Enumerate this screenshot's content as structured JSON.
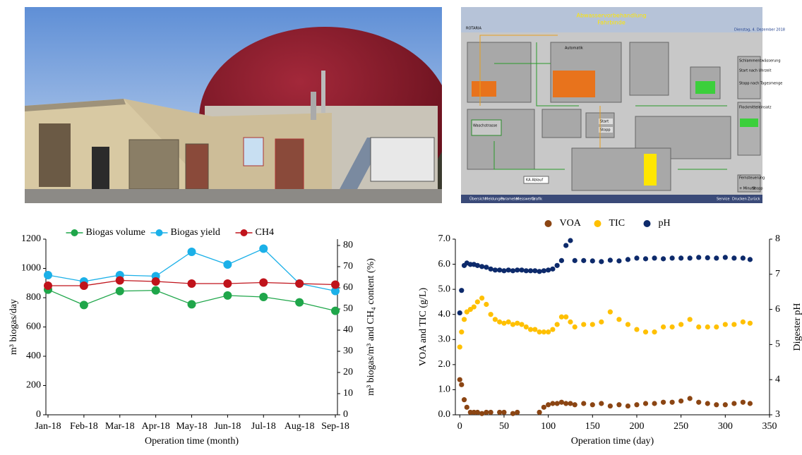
{
  "scada": {
    "title": "Abwasservorbehandlung",
    "subtitle": "Fahrbinde",
    "logo": "ROTARIA",
    "date": "Dienstag, 4. Dezember 2018",
    "labels": [
      "Automatik",
      "Waschstrasse",
      "KA Ablauf",
      "Start",
      "Stopp"
    ],
    "panel": [
      "Schlammentwässerung",
      "Start nach Uhrzeit",
      "Stopp nach Tagesmenge",
      "Flockmitteleinsatz",
      "Fernsteuerung",
      "+ Minute",
      "Stopp"
    ],
    "menu": [
      "Übersicht",
      "Meldungen",
      "Parameter",
      "Messwerte",
      "Grafik",
      "Service",
      "Drucken",
      "Zurück"
    ]
  },
  "chart_data": [
    {
      "type": "line",
      "legend": "top",
      "xlabel": "Operation time (month)",
      "ylabel": "m³ biogas/day",
      "y2label": "m³ biogas/m³ and CH₄ content (%)",
      "categories": [
        "Jan-18",
        "Feb-18",
        "Mar-18",
        "Apr-18",
        "May-18",
        "Jun-18",
        "Jul-18",
        "Aug-18",
        "Sep-18"
      ],
      "ylim": [
        0,
        1200
      ],
      "yticks": [
        0,
        200,
        400,
        600,
        800,
        1000,
        1200
      ],
      "y2lim": [
        0,
        83
      ],
      "y2ticks": [
        0,
        10,
        20,
        30,
        40,
        50,
        60,
        70,
        80
      ],
      "series": [
        {
          "name": "Biogas volume",
          "color": "#1fa64a",
          "values": [
            855,
            750,
            845,
            850,
            755,
            815,
            805,
            768,
            710
          ]
        },
        {
          "name": "Biogas yield",
          "color": "#1bb0e8",
          "axis": "y2",
          "values": [
            66,
            63,
            66,
            65.5,
            77,
            71,
            78.5,
            62,
            58.5
          ]
        },
        {
          "name": "CH4",
          "color": "#c0131b",
          "axis": "y2",
          "values": [
            61,
            61,
            63.5,
            63,
            62,
            62,
            62.5,
            62,
            61.5
          ]
        }
      ]
    },
    {
      "type": "scatter",
      "legend": "top",
      "xlabel": "Operation time (day)",
      "ylabel": "VOA and TIC (g/L)",
      "y2label": "Digester pH",
      "x": [
        0,
        2,
        5,
        8,
        12,
        16,
        20,
        25,
        30,
        35,
        40,
        45,
        50,
        55,
        60,
        65,
        70,
        75,
        80,
        85,
        90,
        95,
        100,
        105,
        110,
        115,
        120,
        125,
        130,
        140,
        150,
        160,
        170,
        180,
        190,
        200,
        210,
        220,
        230,
        240,
        250,
        260,
        270,
        280,
        290,
        300,
        310,
        320,
        328
      ],
      "xlim": [
        -5,
        350
      ],
      "xticks": [
        0,
        50,
        100,
        150,
        200,
        250,
        300,
        350
      ],
      "ylim": [
        0,
        7
      ],
      "yticks": [
        {
          "value": 0,
          "label": "0.0"
        },
        {
          "value": 1,
          "label": "1.0"
        },
        {
          "value": 2,
          "label": "2.0"
        },
        {
          "value": 3,
          "label": "3.0"
        },
        {
          "value": 4,
          "label": "4.0"
        },
        {
          "value": 5,
          "label": "5.0"
        },
        {
          "value": 6,
          "label": "6.0"
        },
        {
          "value": 7,
          "label": "7.0"
        }
      ],
      "y2lim": [
        3,
        8
      ],
      "y2ticks": [
        3,
        4,
        5,
        6,
        7,
        8
      ],
      "series": [
        {
          "name": "VOA",
          "color": "#8b4513",
          "values": [
            1.4,
            1.2,
            0.6,
            0.3,
            0.1,
            0.1,
            0.1,
            0.05,
            0.1,
            0.1,
            null,
            0.1,
            0.1,
            null,
            0.05,
            0.1,
            null,
            null,
            null,
            null,
            0.1,
            0.3,
            0.4,
            0.45,
            0.45,
            0.5,
            0.45,
            0.45,
            0.4,
            0.45,
            0.4,
            0.45,
            0.35,
            0.4,
            0.35,
            0.4,
            0.45,
            0.45,
            0.5,
            0.5,
            0.55,
            0.65,
            0.5,
            0.45,
            0.4,
            0.4,
            0.45,
            0.5,
            0.45
          ]
        },
        {
          "name": "TIC",
          "color": "#ffc000",
          "values": [
            2.7,
            3.3,
            3.8,
            4.1,
            4.2,
            4.3,
            4.5,
            4.65,
            4.4,
            4.0,
            3.8,
            3.7,
            3.65,
            3.7,
            3.6,
            3.65,
            3.6,
            3.5,
            3.4,
            3.4,
            3.3,
            3.3,
            3.3,
            3.4,
            3.6,
            3.9,
            3.9,
            3.7,
            3.5,
            3.6,
            3.6,
            3.7,
            4.1,
            3.8,
            3.6,
            3.4,
            3.3,
            3.3,
            3.5,
            3.5,
            3.6,
            3.8,
            3.5,
            3.5,
            3.5,
            3.6,
            3.6,
            3.7,
            3.65
          ]
        },
        {
          "name": "pH",
          "color": "#0d2a6b",
          "axis": "y2",
          "values": [
            5.9,
            6.54,
            7.25,
            7.32,
            7.28,
            7.28,
            7.25,
            7.22,
            7.2,
            7.15,
            7.12,
            7.12,
            7.1,
            7.12,
            7.1,
            7.12,
            7.12,
            7.1,
            7.1,
            7.1,
            7.08,
            7.1,
            7.12,
            7.15,
            7.25,
            7.39,
            7.82,
            7.96,
            7.39,
            7.39,
            7.38,
            7.36,
            7.4,
            7.38,
            7.42,
            7.46,
            7.44,
            7.46,
            7.44,
            7.46,
            7.46,
            7.46,
            7.48,
            7.47,
            7.46,
            7.48,
            7.46,
            7.46,
            7.42
          ]
        }
      ]
    }
  ]
}
